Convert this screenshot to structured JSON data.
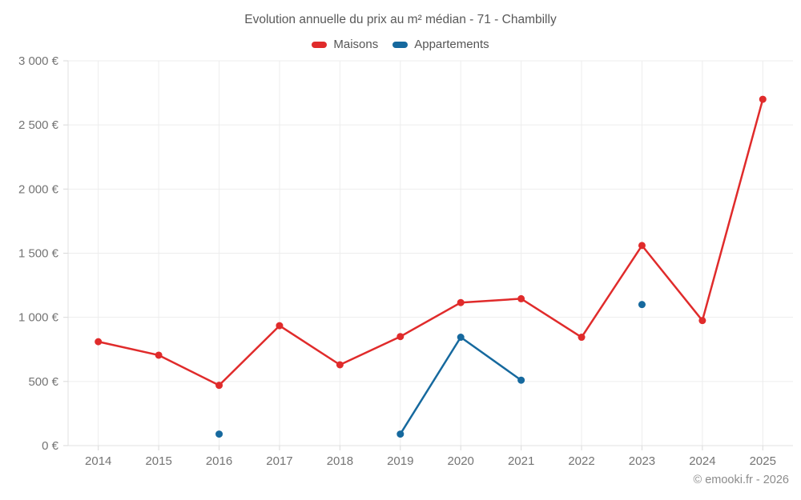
{
  "title": "Evolution annuelle du prix au m² médian - 71 - Chambilly",
  "footer": "© emooki.fr - 2026",
  "colors": {
    "maisons": "#e02b2b",
    "appartements": "#16699e",
    "gridline": "#ededed",
    "axis_line": "#e0e0e0",
    "tick": "#d9d9d9",
    "tick_text": "#747474"
  },
  "chart_data": {
    "type": "line",
    "title": "Evolution annuelle du prix au m² médian - 71 - Chambilly",
    "xlabel": "",
    "ylabel": "",
    "ylim": [
      0,
      3000
    ],
    "grid": true,
    "legend_position": "top",
    "currency": "EUR",
    "categories": [
      "2014",
      "2015",
      "2016",
      "2017",
      "2018",
      "2019",
      "2020",
      "2021",
      "2022",
      "2023",
      "2024",
      "2025"
    ],
    "series": [
      {
        "name": "Maisons",
        "color": "#e02b2b",
        "values": [
          810,
          705,
          470,
          935,
          630,
          850,
          1115,
          1145,
          845,
          1560,
          975,
          2700
        ]
      },
      {
        "name": "Appartements",
        "color": "#16699e",
        "values": [
          null,
          null,
          90,
          null,
          null,
          90,
          845,
          510,
          null,
          1100,
          null,
          null
        ]
      }
    ],
    "y_ticks": [
      {
        "value": 0,
        "label": "0 €"
      },
      {
        "value": 500,
        "label": "500 €"
      },
      {
        "value": 1000,
        "label": "1 000 €"
      },
      {
        "value": 1500,
        "label": "1 500 €"
      },
      {
        "value": 2000,
        "label": "2 000 €"
      },
      {
        "value": 2500,
        "label": "2 500 €"
      },
      {
        "value": 3000,
        "label": "3 000 €"
      }
    ]
  }
}
